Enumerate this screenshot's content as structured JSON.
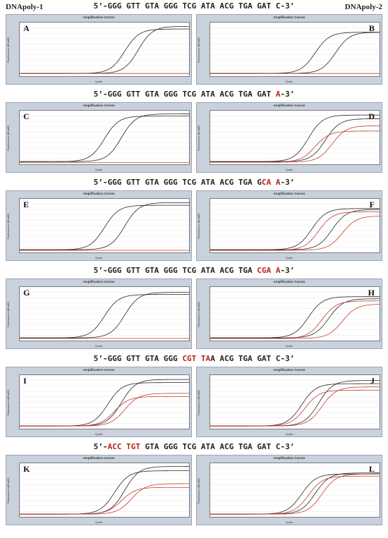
{
  "headers": {
    "left": "DNApoly-1",
    "right": "DNApoly-2"
  },
  "sequences": [
    [
      {
        "t": "5’-GGG GTT GTA GGG TCG ATA ACG TGA GAT C-3’",
        "r": false
      }
    ],
    [
      {
        "t": "5’-GGG GTT GTA GGG TCG ATA ACG TGA GAT ",
        "r": false
      },
      {
        "t": "A",
        "r": true
      },
      {
        "t": "-3’",
        "r": false
      }
    ],
    [
      {
        "t": "5’-GGG GTT GTA GGG TCG ATA ACG TGA G",
        "r": false
      },
      {
        "t": "CA A",
        "r": true
      },
      {
        "t": "-3’",
        "r": false
      }
    ],
    [
      {
        "t": "5’-GGG GTT GTA GGG TCG ATA ACG TGA ",
        "r": false
      },
      {
        "t": "CGA A",
        "r": true
      },
      {
        "t": "-3’",
        "r": false
      }
    ],
    [
      {
        "t": "5’-GGG GTT GTA GGG ",
        "r": false
      },
      {
        "t": "CGT TA",
        "r": true
      },
      {
        "t": "A ACG TGA GAT C-3’",
        "r": false
      }
    ],
    [
      {
        "t": "5’-",
        "r": false
      },
      {
        "t": "ACC TGT",
        "r": true
      },
      {
        "t": " GTA GGG TCG ATA ACG TGA GAT C-3’",
        "r": false
      }
    ]
  ],
  "chart_title": "Amplification Curves",
  "ylabel": "Fluorescence (dRn/dR)",
  "xlabel": "Cycles",
  "colors": {
    "black": "#222222",
    "red": "#c0392b"
  },
  "chart_data": [
    {
      "type": "line",
      "letter": "A",
      "xlim": [
        20,
        45
      ],
      "series": [
        {
          "color": "black",
          "mid": 35.5,
          "top": 0.88,
          "base": 0.05
        },
        {
          "color": "black",
          "mid": 37.5,
          "top": 0.93,
          "base": 0.05
        },
        {
          "color": "red",
          "mid": null,
          "base": 0.05
        }
      ]
    },
    {
      "type": "line",
      "letter": "B",
      "xlim": [
        20,
        45
      ],
      "series": [
        {
          "color": "black",
          "mid": 35.5,
          "top": 0.82,
          "base": 0.05
        },
        {
          "color": "black",
          "mid": 38.5,
          "top": 0.82,
          "base": 0.05
        },
        {
          "color": "red",
          "mid": null,
          "base": 0.05
        }
      ]
    },
    {
      "type": "line",
      "letter": "C",
      "xlim": [
        20,
        45
      ],
      "series": [
        {
          "color": "black",
          "mid": 32.5,
          "top": 0.9,
          "base": 0.05
        },
        {
          "color": "black",
          "mid": 35.0,
          "top": 0.94,
          "base": 0.05
        },
        {
          "color": "red",
          "mid": null,
          "base": 0.03
        }
      ]
    },
    {
      "type": "line",
      "letter": "D",
      "xlim": [
        20,
        45
      ],
      "series": [
        {
          "color": "black",
          "mid": 34.5,
          "top": 0.92,
          "base": 0.05
        },
        {
          "color": "black",
          "mid": 37.0,
          "top": 0.85,
          "base": 0.05
        },
        {
          "color": "red",
          "mid": 35.5,
          "top": 0.62,
          "base": 0.04
        },
        {
          "color": "red",
          "mid": 38.0,
          "top": 0.72,
          "base": 0.04
        }
      ]
    },
    {
      "type": "line",
      "letter": "E",
      "xlim": [
        20,
        45
      ],
      "series": [
        {
          "color": "black",
          "mid": 32.5,
          "top": 0.88,
          "base": 0.05
        },
        {
          "color": "black",
          "mid": 35.5,
          "top": 0.93,
          "base": 0.05
        },
        {
          "color": "red",
          "mid": null,
          "base": 0.04
        }
      ]
    },
    {
      "type": "line",
      "letter": "F",
      "xlim": [
        20,
        45
      ],
      "series": [
        {
          "color": "black",
          "mid": 35.0,
          "top": 0.82,
          "base": 0.05
        },
        {
          "color": "black",
          "mid": 38.0,
          "top": 0.8,
          "base": 0.05
        },
        {
          "color": "red",
          "mid": 36.0,
          "top": 0.76,
          "base": 0.04
        },
        {
          "color": "red",
          "mid": 39.5,
          "top": 0.68,
          "base": 0.04
        }
      ]
    },
    {
      "type": "line",
      "letter": "G",
      "xlim": [
        20,
        45
      ],
      "series": [
        {
          "color": "black",
          "mid": 32.5,
          "top": 0.86,
          "base": 0.05
        },
        {
          "color": "black",
          "mid": 35.5,
          "top": 0.9,
          "base": 0.05
        },
        {
          "color": "red",
          "mid": null,
          "base": 0.04
        }
      ]
    },
    {
      "type": "line",
      "letter": "H",
      "xlim": [
        20,
        45
      ],
      "series": [
        {
          "color": "black",
          "mid": 34.5,
          "top": 0.82,
          "base": 0.05
        },
        {
          "color": "black",
          "mid": 37.5,
          "top": 0.78,
          "base": 0.05
        },
        {
          "color": "red",
          "mid": 36.5,
          "top": 0.74,
          "base": 0.04
        },
        {
          "color": "red",
          "mid": 39.5,
          "top": 0.68,
          "base": 0.04
        }
      ]
    },
    {
      "type": "line",
      "letter": "I",
      "xlim": [
        20,
        45
      ],
      "series": [
        {
          "color": "black",
          "mid": 33.0,
          "top": 0.86,
          "base": 0.05
        },
        {
          "color": "black",
          "mid": 35.0,
          "top": 0.92,
          "base": 0.05
        },
        {
          "color": "red",
          "mid": 34.0,
          "top": 0.6,
          "base": 0.05
        },
        {
          "color": "red",
          "mid": 35.5,
          "top": 0.66,
          "base": 0.05
        }
      ]
    },
    {
      "type": "line",
      "letter": "J",
      "xlim": [
        20,
        45
      ],
      "series": [
        {
          "color": "black",
          "mid": 33.5,
          "top": 0.84,
          "base": 0.05
        },
        {
          "color": "black",
          "mid": 36.0,
          "top": 0.9,
          "base": 0.05
        },
        {
          "color": "red",
          "mid": 34.0,
          "top": 0.72,
          "base": 0.05
        },
        {
          "color": "red",
          "mid": 36.5,
          "top": 0.78,
          "base": 0.05
        }
      ]
    },
    {
      "type": "line",
      "letter": "K",
      "xlim": [
        20,
        45
      ],
      "series": [
        {
          "color": "black",
          "mid": 34.0,
          "top": 0.86,
          "base": 0.05
        },
        {
          "color": "black",
          "mid": 35.5,
          "top": 0.94,
          "base": 0.05
        },
        {
          "color": "red",
          "mid": 35.0,
          "top": 0.55,
          "base": 0.05
        },
        {
          "color": "red",
          "mid": 36.5,
          "top": 0.62,
          "base": 0.05
        }
      ]
    },
    {
      "type": "line",
      "letter": "L",
      "xlim": [
        20,
        45
      ],
      "series": [
        {
          "color": "black",
          "mid": 33.5,
          "top": 0.8,
          "base": 0.05
        },
        {
          "color": "black",
          "mid": 35.5,
          "top": 0.82,
          "base": 0.05
        },
        {
          "color": "red",
          "mid": 34.5,
          "top": 0.76,
          "base": 0.05
        },
        {
          "color": "red",
          "mid": 36.5,
          "top": 0.8,
          "base": 0.05
        }
      ]
    }
  ]
}
